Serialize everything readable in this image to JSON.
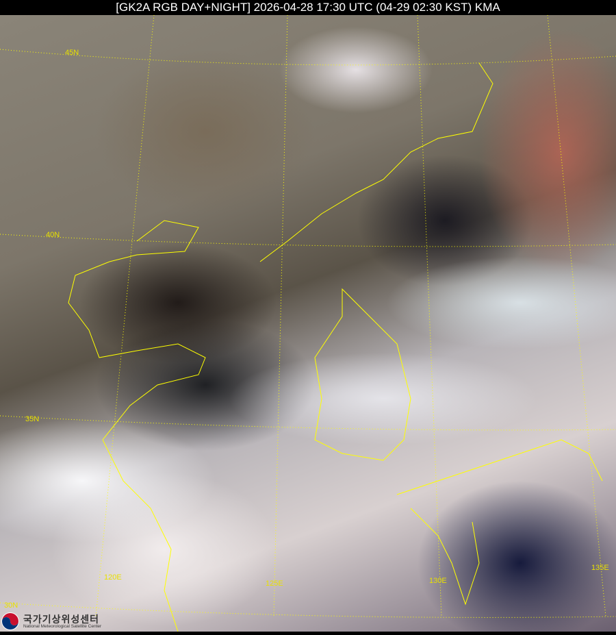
{
  "title": "[GK2A RGB DAY+NIGHT] 2026-04-28 17:30 UTC (04-29 02:30 KST) KMA",
  "grid_labels": {
    "lat": [
      "45N",
      "40N",
      "35N",
      "30N"
    ],
    "lon": [
      "120E",
      "125E",
      "130E",
      "135E"
    ]
  },
  "logo": {
    "korean": "국가기상위성센터",
    "english": "National Meteorological Satellite Center"
  },
  "colors": {
    "grid": "#ffff00",
    "coastline": "#ffff00"
  }
}
